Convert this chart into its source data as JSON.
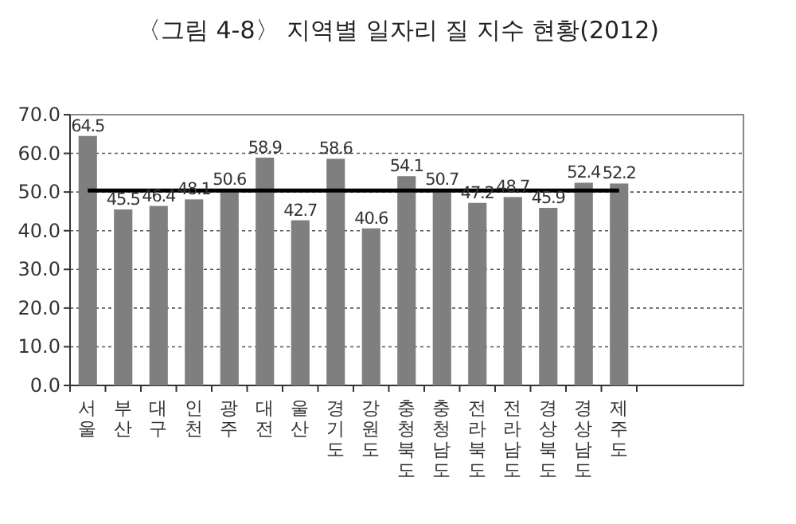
{
  "chart_data": {
    "type": "bar",
    "title": "〈그림 4-8〉 지역별 일자리 질 지수 현황(2012)",
    "categories": [
      "서울",
      "부산",
      "대구",
      "인천",
      "광주",
      "대전",
      "울산",
      "경기도",
      "강원도",
      "충청북도",
      "충청남도",
      "전라북도",
      "전라남도",
      "경상북도",
      "경상남도",
      "제주도"
    ],
    "values": [
      64.5,
      45.5,
      46.4,
      48.1,
      50.6,
      58.9,
      42.7,
      58.6,
      40.6,
      54.1,
      50.7,
      47.2,
      48.7,
      45.9,
      52.4,
      52.2
    ],
    "color": "#7f7f7f",
    "ylim": [
      0,
      70
    ],
    "yticks": [
      {
        "value": 0,
        "label": "0.0"
      },
      {
        "value": 10,
        "label": "10.0"
      },
      {
        "value": 20,
        "label": "20.0"
      },
      {
        "value": 30,
        "label": "30.0"
      },
      {
        "value": 40,
        "label": "40.0"
      },
      {
        "value": 50,
        "label": "50.0"
      },
      {
        "value": 60,
        "label": "60.0"
      },
      {
        "value": 70,
        "label": "70.0"
      }
    ],
    "grid": "y",
    "data_labels": true,
    "ref_lines": [
      {
        "axis": "y",
        "value": 50.4,
        "color": "#000000",
        "line_style": "solid"
      }
    ]
  }
}
